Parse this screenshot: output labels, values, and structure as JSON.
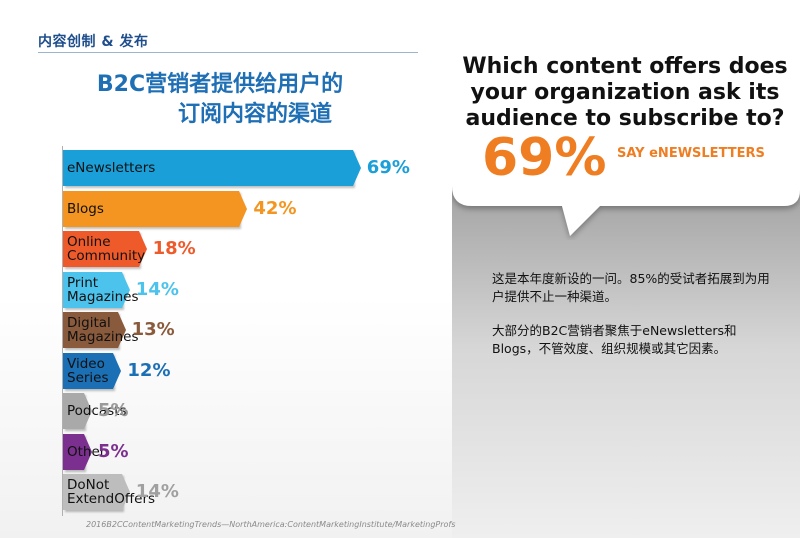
{
  "header": {
    "label": "内容创制 & 发布"
  },
  "chart_data": {
    "type": "bar",
    "orientation": "horizontal",
    "title_lines": [
      "B2C营销者提供给用户的",
      "订阅内容的渠道"
    ],
    "categories": [
      "eNewsletters",
      "Blogs",
      "Online Community",
      "Print Magazines",
      "Digital Magazines",
      "Video Series",
      "Podcasts",
      "Other",
      "Do Not Extend Offers"
    ],
    "category_lines": [
      [
        "eNewsletters"
      ],
      [
        "Blogs"
      ],
      [
        "Online",
        "Community"
      ],
      [
        "Print",
        "Magazines"
      ],
      [
        "Digital",
        "Magazines"
      ],
      [
        "Video",
        "Series"
      ],
      [
        "Podcasts"
      ],
      [
        "Other"
      ],
      [
        "DoNot",
        "ExtendOffers"
      ]
    ],
    "values": [
      69,
      42,
      18,
      14,
      13,
      12,
      5,
      5,
      14
    ],
    "value_labels": [
      "69%",
      "42%",
      "18%",
      "14%",
      "13%",
      "12%",
      "5%",
      "5%",
      "14%"
    ],
    "colors": [
      "#1a9fd9",
      "#f39520",
      "#ef5a2b",
      "#4cc3ec",
      "#8a5a3c",
      "#1a6fb5",
      "#a9a9a9",
      "#7b2f8f",
      "#bdbdbd"
    ],
    "label_colors": [
      "#1a9fd9",
      "#f39520",
      "#ef5a2b",
      "#4cc3ec",
      "#8a5a3c",
      "#1a6fb5",
      "#9a9a9a",
      "#7b2f8f",
      "#a0a0a0"
    ],
    "xlim": [
      0,
      100
    ]
  },
  "source": "2016B2CContentMarketingTrends—NorthAmerica:ContentMarketingInstitute/MarketingProfs",
  "callout": {
    "question": "Which content offers does your organization ask its audience to subscribe to?",
    "percent": "69%",
    "say": "SAY eNEWSLETTERS"
  },
  "notes": [
    "这是本年度新设的一问。85%的受试者拓展到为用户提供不止一种渠道。",
    "大部分的B2C营销者聚焦于eNewsletters和Blogs，不管效度、组织规模或其它因素。"
  ]
}
